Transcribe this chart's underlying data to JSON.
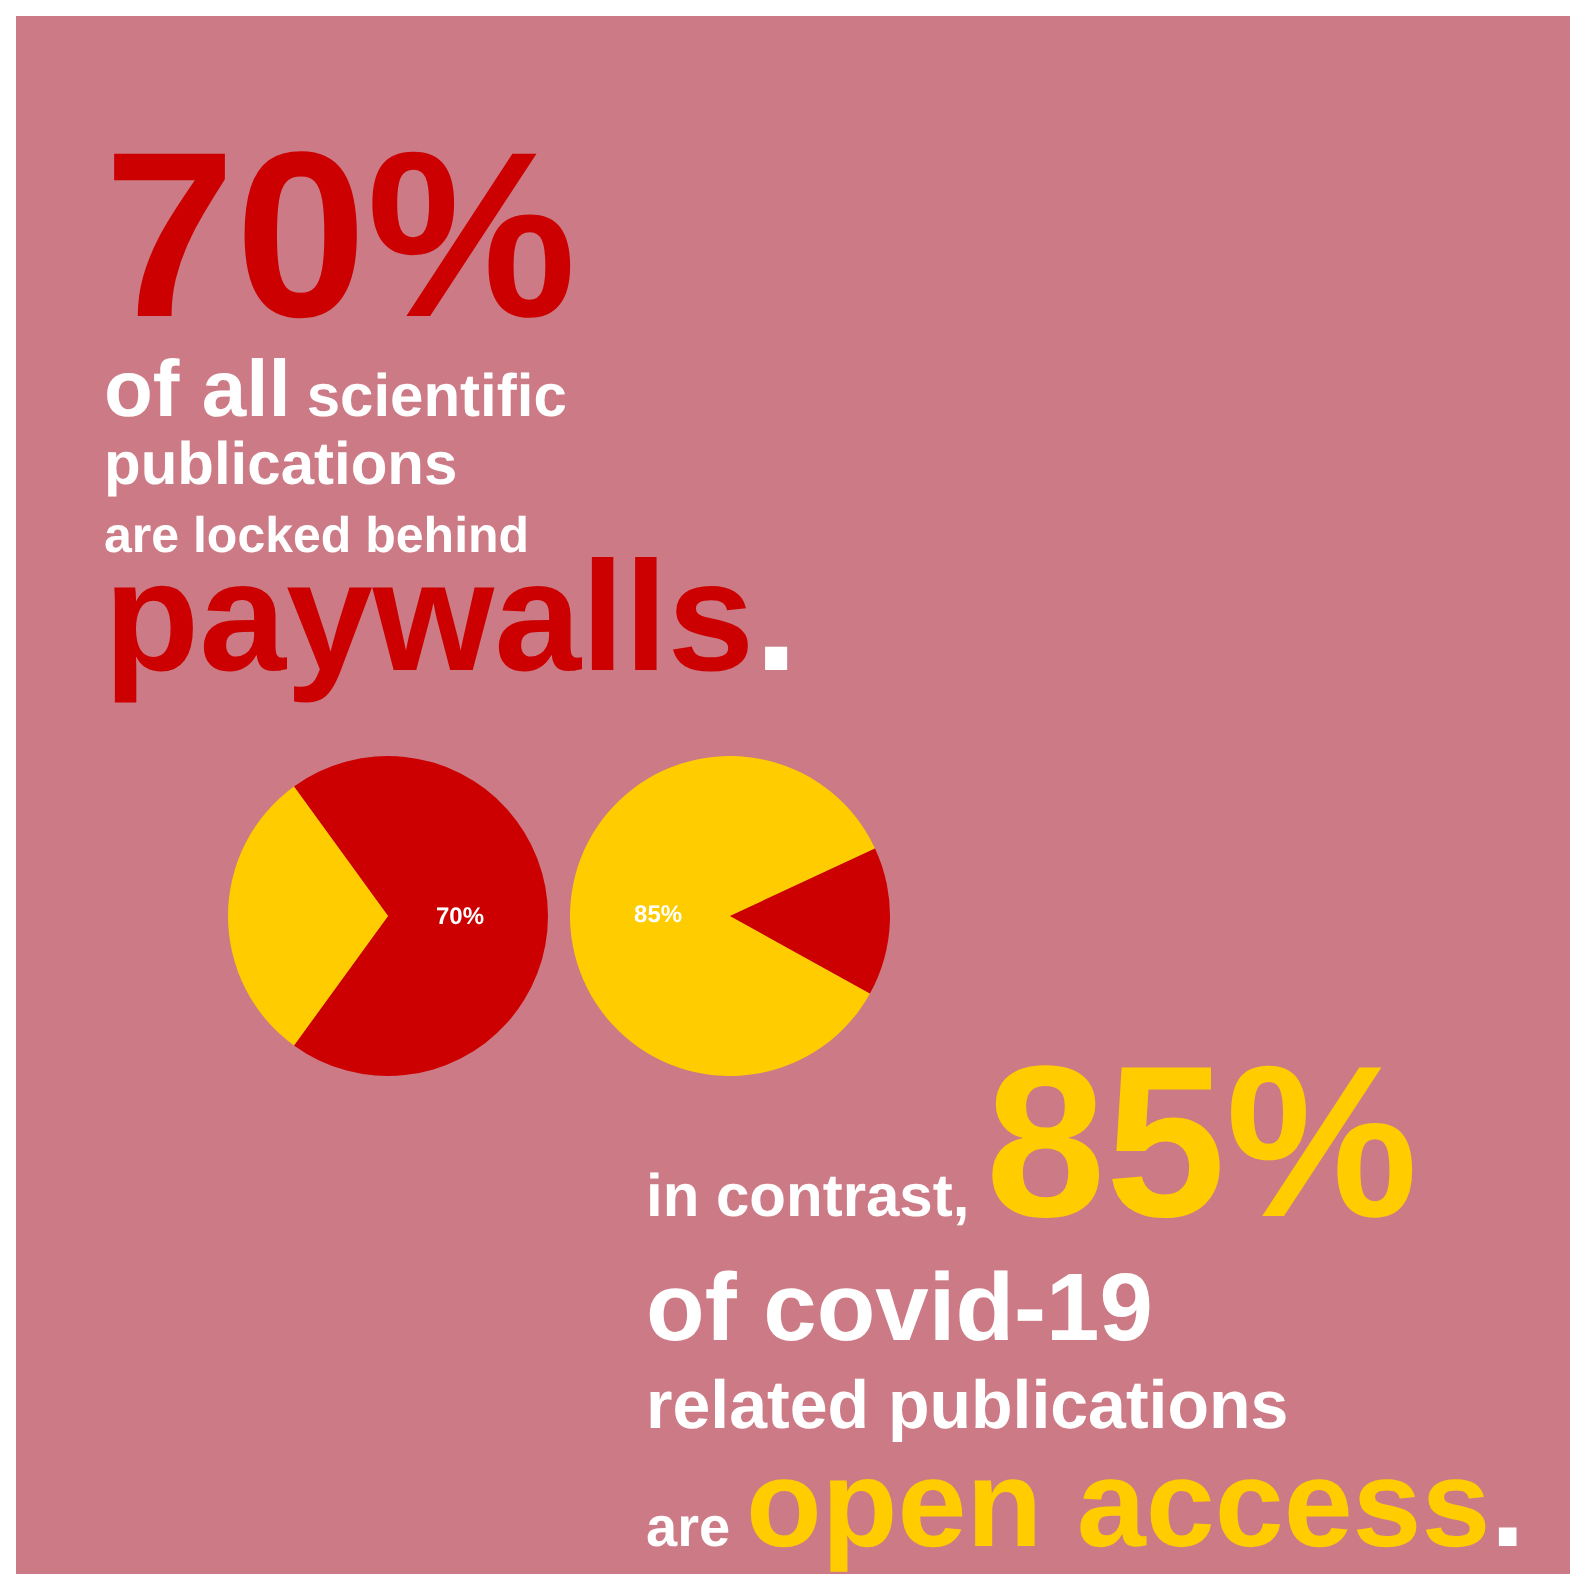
{
  "chart_data": [
    {
      "type": "pie",
      "annotations": [
        "70%",
        "of all",
        "scientific",
        "publications",
        "are locked behind",
        "paywalls",
        "."
      ],
      "categories": [
        null,
        null
      ],
      "values": [
        70,
        30
      ],
      "colors": [
        "#cc0000",
        "#ffcc00"
      ],
      "value_labels": [
        "70%",
        null
      ]
    },
    {
      "type": "pie",
      "annotations": [
        "in contrast,",
        "85%",
        "of covid-19",
        "related publications",
        "are",
        "open access",
        "."
      ],
      "categories": [
        null,
        null
      ],
      "values": [
        85,
        15
      ],
      "colors": [
        "#ffcc00",
        "#cc0000"
      ],
      "value_labels": [
        "85%",
        null
      ]
    }
  ]
}
